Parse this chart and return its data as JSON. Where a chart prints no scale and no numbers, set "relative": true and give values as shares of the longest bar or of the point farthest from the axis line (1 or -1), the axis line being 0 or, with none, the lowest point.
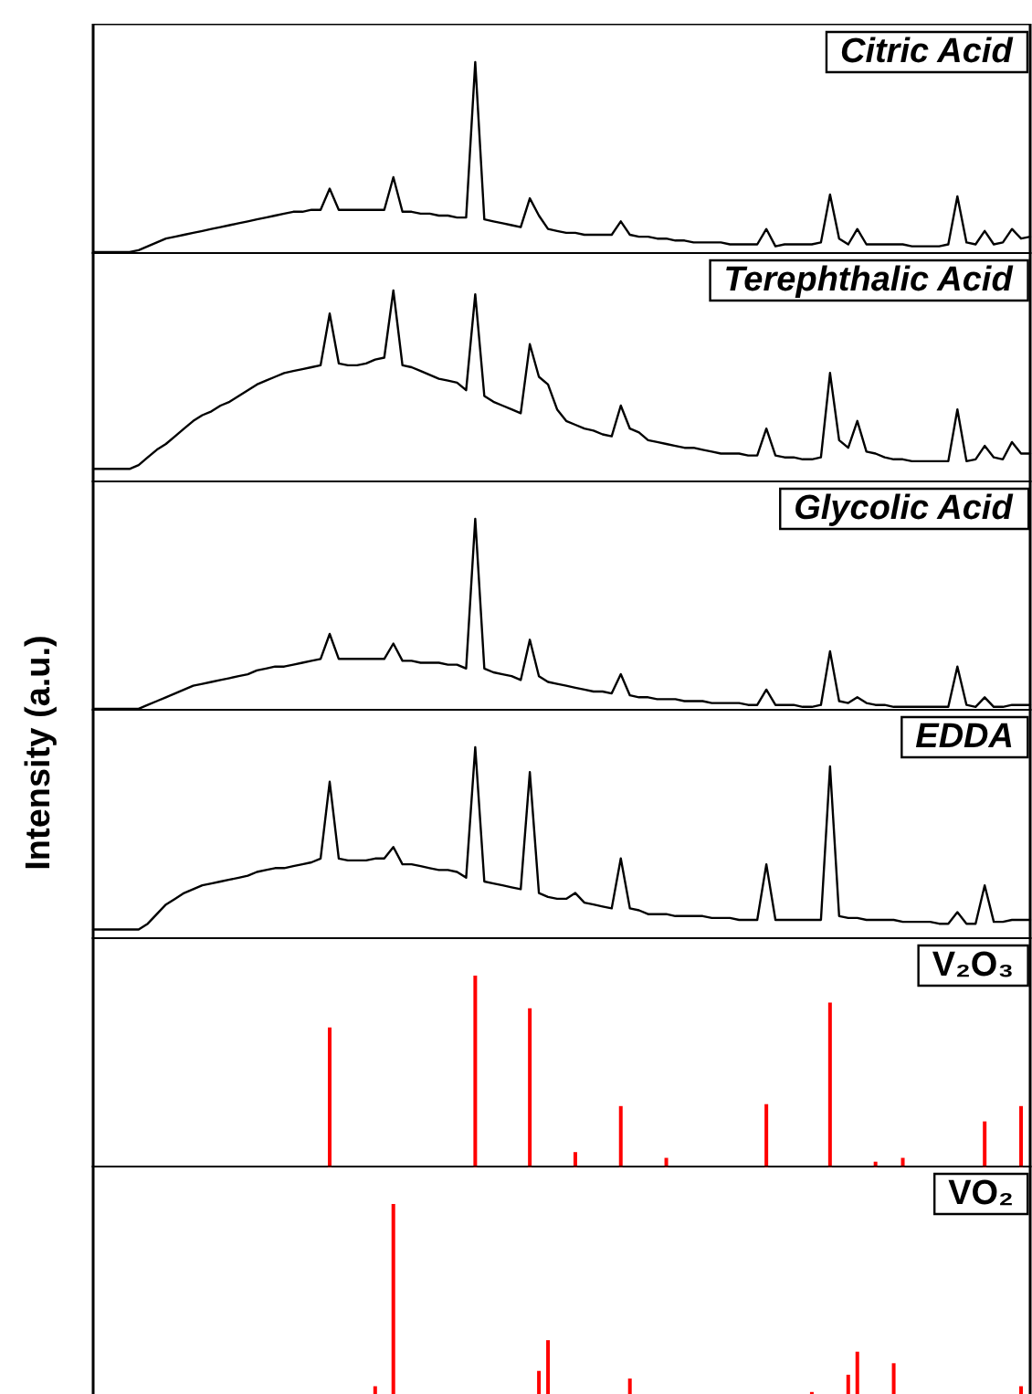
{
  "chart_data": [
    {
      "type": "line",
      "title": "Citric Acid",
      "color": "#000000",
      "relative": true,
      "tick_labels": false,
      "categories": [
        null,
        null,
        null,
        null,
        null,
        null,
        null,
        null,
        null,
        null,
        null,
        null,
        null,
        null,
        null,
        null,
        null,
        null,
        null,
        null,
        null,
        null,
        null,
        null,
        null,
        null,
        null,
        null,
        null,
        null,
        null,
        null,
        null,
        null,
        null,
        null,
        null,
        null,
        null,
        null,
        null,
        null,
        null,
        null,
        null,
        null,
        null,
        null,
        null,
        null,
        null,
        null,
        null,
        null,
        null,
        null,
        null,
        null,
        null,
        null,
        null,
        null,
        null,
        null,
        null,
        null,
        null,
        null,
        null,
        null,
        null,
        null,
        null,
        null,
        null,
        null,
        null,
        null,
        null,
        null,
        null,
        null,
        null,
        null,
        null,
        null,
        null,
        null,
        null,
        null,
        null,
        null,
        null,
        null,
        null,
        null,
        null,
        null,
        null,
        null,
        null,
        null,
        null,
        null
      ],
      "values": [
        0.01,
        0.01,
        0.01,
        0.01,
        0.01,
        0.02,
        0.04,
        0.06,
        0.08,
        0.09,
        0.1,
        0.11,
        0.12,
        0.13,
        0.14,
        0.15,
        0.16,
        0.17,
        0.18,
        0.19,
        0.2,
        0.21,
        0.22,
        0.22,
        0.23,
        0.23,
        0.34,
        0.23,
        0.23,
        0.23,
        0.23,
        0.23,
        0.23,
        0.4,
        0.22,
        0.22,
        0.21,
        0.21,
        0.2,
        0.2,
        0.19,
        0.19,
        1.0,
        0.18,
        0.17,
        0.16,
        0.15,
        0.14,
        0.29,
        0.2,
        0.13,
        0.12,
        0.11,
        0.11,
        0.1,
        0.1,
        0.1,
        0.1,
        0.17,
        0.1,
        0.09,
        0.09,
        0.08,
        0.08,
        0.07,
        0.07,
        0.06,
        0.06,
        0.06,
        0.06,
        0.05,
        0.05,
        0.05,
        0.05,
        0.13,
        0.04,
        0.05,
        0.05,
        0.05,
        0.05,
        0.06,
        0.31,
        0.08,
        0.05,
        0.13,
        0.05,
        0.05,
        0.05,
        0.05,
        0.05,
        0.04,
        0.04,
        0.04,
        0.04,
        0.05,
        0.3,
        0.06,
        0.05,
        0.12,
        0.05,
        0.06,
        0.13,
        0.08,
        0.09
      ]
    },
    {
      "type": "line",
      "title": "Terephthalic Acid",
      "color": "#000000",
      "relative": true,
      "tick_labels": false,
      "categories": [
        null,
        null,
        null,
        null,
        null,
        null,
        null,
        null,
        null,
        null,
        null,
        null,
        null,
        null,
        null,
        null,
        null,
        null,
        null,
        null,
        null,
        null,
        null,
        null,
        null,
        null,
        null,
        null,
        null,
        null,
        null,
        null,
        null,
        null,
        null,
        null,
        null,
        null,
        null,
        null,
        null,
        null,
        null,
        null,
        null,
        null,
        null,
        null,
        null,
        null,
        null,
        null,
        null,
        null,
        null,
        null,
        null,
        null,
        null,
        null,
        null,
        null,
        null,
        null,
        null,
        null,
        null,
        null,
        null,
        null,
        null,
        null,
        null,
        null,
        null,
        null,
        null,
        null,
        null,
        null,
        null,
        null,
        null,
        null,
        null,
        null,
        null,
        null,
        null,
        null,
        null,
        null,
        null,
        null,
        null,
        null,
        null,
        null,
        null,
        null,
        null,
        null,
        null,
        null
      ],
      "values": [
        0.07,
        0.07,
        0.07,
        0.07,
        0.07,
        0.09,
        0.13,
        0.17,
        0.2,
        0.24,
        0.28,
        0.32,
        0.35,
        0.37,
        0.4,
        0.42,
        0.45,
        0.48,
        0.51,
        0.53,
        0.55,
        0.57,
        0.58,
        0.59,
        0.6,
        0.61,
        0.88,
        0.62,
        0.61,
        0.61,
        0.62,
        0.64,
        0.65,
        1.0,
        0.61,
        0.6,
        0.58,
        0.56,
        0.54,
        0.53,
        0.52,
        0.48,
        0.98,
        0.45,
        0.42,
        0.4,
        0.38,
        0.36,
        0.72,
        0.55,
        0.51,
        0.38,
        0.32,
        0.3,
        0.28,
        0.27,
        0.25,
        0.24,
        0.4,
        0.28,
        0.26,
        0.22,
        0.21,
        0.2,
        0.19,
        0.18,
        0.18,
        0.17,
        0.16,
        0.15,
        0.15,
        0.15,
        0.14,
        0.14,
        0.28,
        0.14,
        0.13,
        0.13,
        0.12,
        0.12,
        0.13,
        0.57,
        0.22,
        0.18,
        0.32,
        0.16,
        0.15,
        0.13,
        0.12,
        0.12,
        0.11,
        0.11,
        0.11,
        0.11,
        0.11,
        0.38,
        0.11,
        0.12,
        0.19,
        0.13,
        0.12,
        0.21,
        0.15,
        0.15
      ]
    },
    {
      "type": "line",
      "title": "Glycolic Acid",
      "color": "#000000",
      "relative": true,
      "tick_labels": false,
      "categories": [
        null,
        null,
        null,
        null,
        null,
        null,
        null,
        null,
        null,
        null,
        null,
        null,
        null,
        null,
        null,
        null,
        null,
        null,
        null,
        null,
        null,
        null,
        null,
        null,
        null,
        null,
        null,
        null,
        null,
        null,
        null,
        null,
        null,
        null,
        null,
        null,
        null,
        null,
        null,
        null,
        null,
        null,
        null,
        null,
        null,
        null,
        null,
        null,
        null,
        null,
        null,
        null,
        null,
        null,
        null,
        null,
        null,
        null,
        null,
        null,
        null,
        null,
        null,
        null,
        null,
        null,
        null,
        null,
        null,
        null,
        null,
        null,
        null,
        null,
        null,
        null,
        null,
        null,
        null,
        null,
        null,
        null,
        null,
        null,
        null,
        null,
        null,
        null,
        null,
        null,
        null,
        null,
        null,
        null,
        null,
        null,
        null,
        null,
        null,
        null,
        null,
        null,
        null,
        null
      ],
      "values": [
        0.01,
        0.01,
        0.01,
        0.01,
        0.01,
        0.01,
        0.03,
        0.05,
        0.07,
        0.09,
        0.11,
        0.13,
        0.14,
        0.15,
        0.16,
        0.17,
        0.18,
        0.19,
        0.21,
        0.22,
        0.23,
        0.23,
        0.24,
        0.25,
        0.26,
        0.27,
        0.4,
        0.27,
        0.27,
        0.27,
        0.27,
        0.27,
        0.27,
        0.35,
        0.26,
        0.26,
        0.25,
        0.25,
        0.25,
        0.24,
        0.24,
        0.22,
        1.0,
        0.22,
        0.2,
        0.19,
        0.18,
        0.16,
        0.37,
        0.18,
        0.15,
        0.14,
        0.13,
        0.12,
        0.11,
        0.1,
        0.1,
        0.09,
        0.19,
        0.08,
        0.07,
        0.07,
        0.06,
        0.06,
        0.06,
        0.05,
        0.05,
        0.05,
        0.04,
        0.04,
        0.04,
        0.04,
        0.03,
        0.03,
        0.11,
        0.03,
        0.03,
        0.03,
        0.02,
        0.02,
        0.03,
        0.31,
        0.05,
        0.04,
        0.07,
        0.04,
        0.03,
        0.03,
        0.02,
        0.02,
        0.02,
        0.02,
        0.02,
        0.02,
        0.02,
        0.23,
        0.03,
        0.02,
        0.07,
        0.02,
        0.02,
        0.03,
        0.03,
        0.03
      ]
    },
    {
      "type": "line",
      "title": "EDDA",
      "ylabel": "Intensity (a.u.)",
      "color": "#000000",
      "relative": true,
      "tick_labels": false,
      "categories": [
        null,
        null,
        null,
        null,
        null,
        null,
        null,
        null,
        null,
        null,
        null,
        null,
        null,
        null,
        null,
        null,
        null,
        null,
        null,
        null,
        null,
        null,
        null,
        null,
        null,
        null,
        null,
        null,
        null,
        null,
        null,
        null,
        null,
        null,
        null,
        null,
        null,
        null,
        null,
        null,
        null,
        null,
        null,
        null,
        null,
        null,
        null,
        null,
        null,
        null,
        null,
        null,
        null,
        null,
        null,
        null,
        null,
        null,
        null,
        null,
        null,
        null,
        null,
        null,
        null,
        null,
        null,
        null,
        null,
        null,
        null,
        null,
        null,
        null,
        null,
        null,
        null,
        null,
        null,
        null,
        null,
        null,
        null,
        null,
        null,
        null,
        null,
        null,
        null,
        null,
        null,
        null,
        null,
        null,
        null,
        null,
        null,
        null,
        null,
        null,
        null,
        null,
        null,
        null
      ],
      "values": [
        0.05,
        0.05,
        0.05,
        0.05,
        0.05,
        0.05,
        0.08,
        0.13,
        0.18,
        0.21,
        0.24,
        0.26,
        0.28,
        0.29,
        0.3,
        0.31,
        0.32,
        0.33,
        0.35,
        0.36,
        0.37,
        0.37,
        0.38,
        0.39,
        0.4,
        0.42,
        0.82,
        0.42,
        0.41,
        0.41,
        0.41,
        0.42,
        0.42,
        0.48,
        0.39,
        0.39,
        0.38,
        0.37,
        0.36,
        0.36,
        0.35,
        0.32,
        1.0,
        0.3,
        0.29,
        0.28,
        0.27,
        0.26,
        0.87,
        0.24,
        0.22,
        0.21,
        0.21,
        0.24,
        0.19,
        0.18,
        0.17,
        0.16,
        0.42,
        0.16,
        0.15,
        0.13,
        0.13,
        0.13,
        0.12,
        0.12,
        0.12,
        0.12,
        0.11,
        0.11,
        0.11,
        0.1,
        0.1,
        0.1,
        0.39,
        0.1,
        0.1,
        0.1,
        0.1,
        0.1,
        0.1,
        0.9,
        0.12,
        0.11,
        0.11,
        0.1,
        0.1,
        0.1,
        0.1,
        0.09,
        0.09,
        0.09,
        0.09,
        0.08,
        0.08,
        0.14,
        0.08,
        0.08,
        0.28,
        0.09,
        0.09,
        0.1,
        0.1,
        0.1
      ]
    },
    {
      "type": "bar",
      "title": "V₂O₃",
      "color": "#ff0000",
      "relative": true,
      "tick_labels": false,
      "categories": [
        null,
        null,
        null,
        null,
        null,
        null,
        null,
        null,
        null,
        null,
        null,
        null,
        null,
        null,
        null,
        null,
        null,
        null,
        null,
        null,
        null,
        null,
        null,
        null,
        null,
        null,
        null,
        null,
        null,
        null,
        null,
        null,
        null,
        null,
        null,
        null,
        null,
        null,
        null,
        null,
        null,
        null,
        null,
        null,
        null,
        null,
        null,
        null,
        null,
        null,
        null,
        null,
        null,
        null,
        null,
        null,
        null,
        null,
        null,
        null,
        null,
        null,
        null,
        null,
        null,
        null,
        null,
        null,
        null,
        null,
        null,
        null,
        null,
        null,
        null,
        null,
        null,
        null,
        null,
        null,
        null,
        null,
        null,
        null,
        null,
        null,
        null,
        null,
        null,
        null,
        null,
        null,
        null,
        null,
        null,
        null,
        null,
        null,
        null,
        null,
        null,
        null,
        null,
        null
      ],
      "values": [
        null,
        null,
        null,
        null,
        null,
        null,
        null,
        null,
        null,
        null,
        null,
        null,
        null,
        null,
        null,
        null,
        null,
        null,
        null,
        null,
        null,
        null,
        null,
        null,
        null,
        null,
        0.73,
        null,
        null,
        null,
        null,
        null,
        null,
        null,
        null,
        null,
        null,
        null,
        null,
        null,
        null,
        null,
        1.0,
        null,
        null,
        null,
        null,
        null,
        0.83,
        null,
        null,
        null,
        null,
        0.08,
        null,
        null,
        null,
        null,
        0.32,
        null,
        null,
        null,
        null,
        0.05,
        null,
        null,
        null,
        null,
        null,
        null,
        null,
        null,
        null,
        null,
        0.33,
        null,
        null,
        null,
        null,
        null,
        null,
        0.86,
        null,
        null,
        null,
        null,
        0.03,
        null,
        null,
        0.05,
        null,
        null,
        null,
        null,
        null,
        null,
        null,
        null,
        0.24,
        null,
        null,
        null,
        0.32,
        null
      ]
    },
    {
      "type": "bar",
      "title": "VO₂",
      "color": "#ff0000",
      "relative": true,
      "tick_labels": false,
      "categories": [
        null,
        null,
        null,
        null,
        null,
        null,
        null,
        null,
        null,
        null,
        null,
        null,
        null,
        null,
        null,
        null,
        null,
        null,
        null,
        null,
        null,
        null,
        null,
        null,
        null,
        null,
        null,
        null,
        null,
        null,
        null,
        null,
        null,
        null,
        null,
        null,
        null,
        null,
        null,
        null,
        null,
        null,
        null,
        null,
        null,
        null,
        null,
        null,
        null,
        null,
        null,
        null,
        null,
        null,
        null,
        null,
        null,
        null,
        null,
        null,
        null,
        null,
        null,
        null,
        null,
        null,
        null,
        null,
        null,
        null,
        null,
        null,
        null,
        null,
        null,
        null,
        null,
        null,
        null,
        null,
        null,
        null,
        null,
        null,
        null,
        null,
        null,
        null,
        null,
        null,
        null,
        null,
        null,
        null,
        null,
        null,
        null,
        null,
        null,
        null,
        null,
        null,
        null,
        null
      ],
      "values": [
        null,
        null,
        null,
        null,
        null,
        null,
        null,
        null,
        null,
        null,
        null,
        null,
        null,
        null,
        null,
        null,
        null,
        null,
        null,
        null,
        null,
        null,
        null,
        null,
        null,
        null,
        null,
        null,
        null,
        null,
        null,
        0.05,
        null,
        1.0,
        null,
        null,
        null,
        null,
        null,
        null,
        null,
        null,
        null,
        null,
        null,
        null,
        null,
        null,
        null,
        0.13,
        0.29,
        null,
        null,
        null,
        null,
        null,
        null,
        null,
        null,
        0.09,
        null,
        null,
        null,
        null,
        null,
        null,
        null,
        null,
        null,
        null,
        null,
        null,
        null,
        null,
        null,
        null,
        null,
        null,
        null,
        0.02,
        null,
        null,
        null,
        0.11,
        0.23,
        null,
        null,
        null,
        0.17,
        null,
        null,
        null,
        null,
        null,
        null,
        null,
        null,
        null,
        null,
        null,
        null,
        null,
        0.05,
        null
      ]
    }
  ]
}
